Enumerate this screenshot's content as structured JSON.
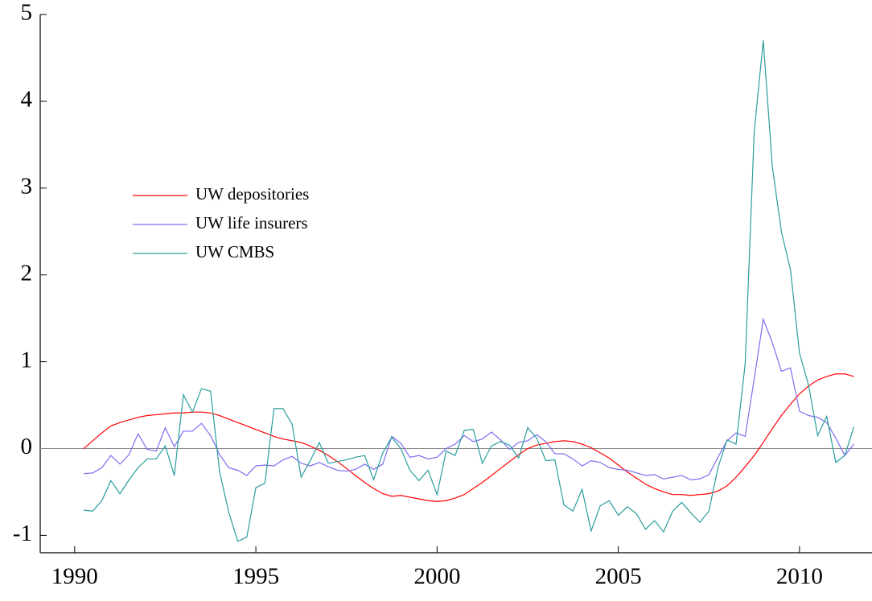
{
  "chart_data": {
    "type": "line",
    "x": [
      1990.25,
      1990.5,
      1990.75,
      1991,
      1991.25,
      1991.5,
      1991.75,
      1992,
      1992.25,
      1992.5,
      1992.75,
      1993,
      1993.25,
      1993.5,
      1993.75,
      1994,
      1994.25,
      1994.5,
      1994.75,
      1995,
      1995.25,
      1995.5,
      1995.75,
      1996,
      1996.25,
      1996.5,
      1996.75,
      1997,
      1997.25,
      1997.5,
      1997.75,
      1998,
      1998.25,
      1998.5,
      1998.75,
      1999,
      1999.25,
      1999.5,
      1999.75,
      2000,
      2000.25,
      2000.5,
      2000.75,
      2001,
      2001.25,
      2001.5,
      2001.75,
      2002,
      2002.25,
      2002.5,
      2002.75,
      2003,
      2003.25,
      2003.5,
      2003.75,
      2004,
      2004.25,
      2004.5,
      2004.75,
      2005,
      2005.25,
      2005.5,
      2005.75,
      2006,
      2006.25,
      2006.5,
      2006.75,
      2007,
      2007.25,
      2007.5,
      2007.75,
      2008,
      2008.25,
      2008.5,
      2008.75,
      2009,
      2009.25,
      2009.5,
      2009.75,
      2010,
      2010.25,
      2010.5,
      2010.75,
      2011,
      2011.25,
      2011.5
    ],
    "series": [
      {
        "name": "UW depositories",
        "color": "#ff0000",
        "values": [
          0,
          0.09,
          0.18,
          0.26,
          0.3,
          0.33,
          0.36,
          0.38,
          0.39,
          0.4,
          0.41,
          0.41,
          0.42,
          0.42,
          0.41,
          0.38,
          0.34,
          0.3,
          0.26,
          0.22,
          0.18,
          0.14,
          0.11,
          0.09,
          0.07,
          0.03,
          -0.02,
          -0.08,
          -0.15,
          -0.23,
          -0.31,
          -0.39,
          -0.46,
          -0.52,
          -0.55,
          -0.54,
          -0.56,
          -0.58,
          -0.6,
          -0.61,
          -0.6,
          -0.57,
          -0.53,
          -0.46,
          -0.39,
          -0.31,
          -0.23,
          -0.15,
          -0.07,
          0,
          0.04,
          0.06,
          0.08,
          0.09,
          0.08,
          0.05,
          0.01,
          -0.05,
          -0.11,
          -0.19,
          -0.27,
          -0.34,
          -0.41,
          -0.46,
          -0.5,
          -0.53,
          -0.53,
          -0.54,
          -0.53,
          -0.52,
          -0.49,
          -0.43,
          -0.33,
          -0.21,
          -0.08,
          0.07,
          0.23,
          0.38,
          0.51,
          0.63,
          0.72,
          0.79,
          0.83,
          0.86,
          0.86,
          0.83
        ]
      },
      {
        "name": "UW life insurers",
        "color": "#7b6ef0",
        "values": [
          -0.29,
          -0.28,
          -0.22,
          -0.08,
          -0.18,
          -0.07,
          0.17,
          -0.01,
          -0.03,
          0.24,
          0.02,
          0.2,
          0.2,
          0.29,
          0.15,
          -0.07,
          -0.22,
          -0.25,
          -0.31,
          -0.2,
          -0.19,
          -0.2,
          -0.13,
          -0.09,
          -0.17,
          -0.2,
          -0.16,
          -0.21,
          -0.25,
          -0.26,
          -0.24,
          -0.18,
          -0.24,
          -0.18,
          0.14,
          0.06,
          -0.1,
          -0.08,
          -0.12,
          -0.1,
          0,
          0.05,
          0.15,
          0.08,
          0.11,
          0.19,
          0.1,
          -0.01,
          0.07,
          0.09,
          0.16,
          0.08,
          -0.06,
          -0.06,
          -0.12,
          -0.2,
          -0.14,
          -0.16,
          -0.22,
          -0.24,
          -0.25,
          -0.28,
          -0.31,
          -0.3,
          -0.35,
          -0.33,
          -0.31,
          -0.36,
          -0.35,
          -0.3,
          -0.1,
          0.09,
          0.18,
          0.14,
          0.8,
          1.49,
          1.22,
          0.89,
          0.93,
          0.43,
          0.38,
          0.36,
          0.3,
          0.12,
          -0.08,
          0.05
        ]
      },
      {
        "name": "UW CMBS",
        "color": "#2a9d9d",
        "values": [
          -0.71,
          -0.72,
          -0.6,
          -0.37,
          -0.52,
          -0.36,
          -0.22,
          -0.12,
          -0.12,
          0.03,
          -0.31,
          0.62,
          0.42,
          0.69,
          0.66,
          -0.27,
          -0.73,
          -1.07,
          -1.02,
          -0.45,
          -0.4,
          0.46,
          0.46,
          0.28,
          -0.33,
          -0.14,
          0.07,
          -0.17,
          -0.15,
          -0.13,
          -0.1,
          -0.08,
          -0.36,
          -0.05,
          0.13,
          0,
          -0.25,
          -0.37,
          -0.25,
          -0.53,
          -0.03,
          -0.08,
          0.21,
          0.22,
          -0.17,
          0.03,
          0.08,
          0.04,
          -0.11,
          0.24,
          0.12,
          -0.14,
          -0.13,
          -0.65,
          -0.72,
          -0.47,
          -0.95,
          -0.66,
          -0.6,
          -0.77,
          -0.67,
          -0.75,
          -0.93,
          -0.83,
          -0.96,
          -0.72,
          -0.62,
          -0.74,
          -0.85,
          -0.72,
          -0.22,
          0.1,
          0.05,
          0.97,
          3.65,
          4.7,
          3.25,
          2.5,
          2.06,
          1.1,
          0.73,
          0.15,
          0.37,
          -0.16,
          -0.08,
          0.25
        ]
      }
    ],
    "xlim": [
      1989.05,
      2012.0
    ],
    "xticks": [
      1990,
      1995,
      2000,
      2005,
      2010
    ],
    "ylim": [
      -1.2,
      5
    ],
    "yticks": [
      -1,
      0,
      1,
      2,
      3,
      4,
      5
    ],
    "legend": "upper left"
  }
}
